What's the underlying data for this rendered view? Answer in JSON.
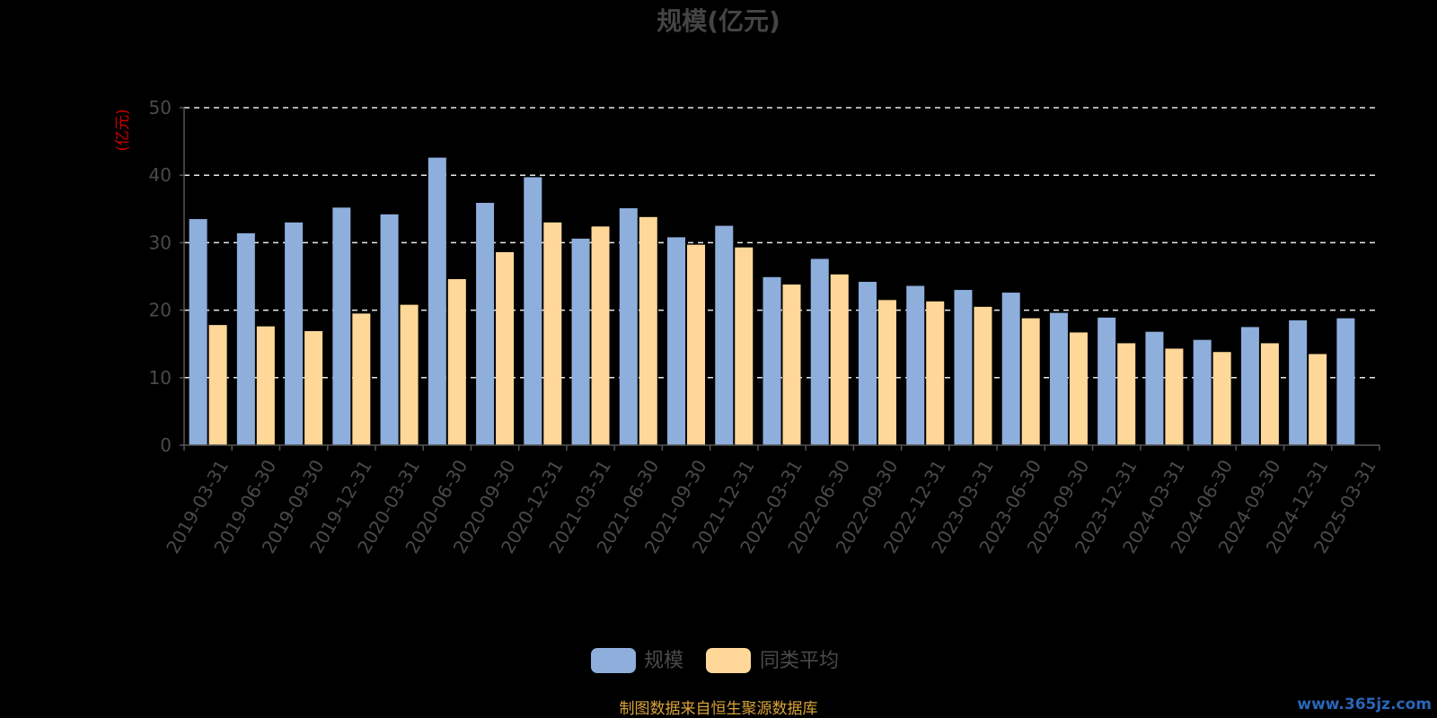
{
  "chart_data": {
    "type": "bar",
    "title": "规模(亿元)",
    "ylabel": "(亿元)",
    "ylim": [
      0,
      50
    ],
    "yticks": [
      0,
      10,
      20,
      30,
      40,
      50
    ],
    "grid": true,
    "legend_position": "bottom-center",
    "categories": [
      "2019-03-31",
      "2019-06-30",
      "2019-09-30",
      "2019-12-31",
      "2020-03-31",
      "2020-06-30",
      "2020-09-30",
      "2020-12-31",
      "2021-03-31",
      "2021-06-30",
      "2021-09-30",
      "2021-12-31",
      "2022-03-31",
      "2022-06-30",
      "2022-09-30",
      "2022-12-31",
      "2023-03-31",
      "2023-06-30",
      "2023-09-30",
      "2023-12-31",
      "2024-03-31",
      "2024-06-30",
      "2024-09-30",
      "2024-12-31",
      "2025-03-31"
    ],
    "series": [
      {
        "name": "规模",
        "color": "#8eaedc",
        "values": [
          33.5,
          31.4,
          33.0,
          35.2,
          34.2,
          42.6,
          35.9,
          39.7,
          30.6,
          35.1,
          30.8,
          32.5,
          24.9,
          27.6,
          24.2,
          23.6,
          23.0,
          22.6,
          19.6,
          18.9,
          16.8,
          15.6,
          17.5,
          18.5,
          18.8
        ]
      },
      {
        "name": "同类平均",
        "color": "#ffd899",
        "values": [
          17.8,
          17.6,
          16.9,
          19.5,
          20.8,
          24.6,
          28.6,
          33.0,
          32.4,
          33.8,
          29.7,
          29.3,
          23.8,
          25.3,
          21.5,
          21.3,
          20.5,
          18.8,
          16.7,
          15.1,
          14.3,
          13.8,
          15.1,
          13.5,
          null
        ]
      }
    ]
  },
  "source_text": "制图数据来自恒生聚源数据库",
  "watermark_text": "www.365jz.com"
}
